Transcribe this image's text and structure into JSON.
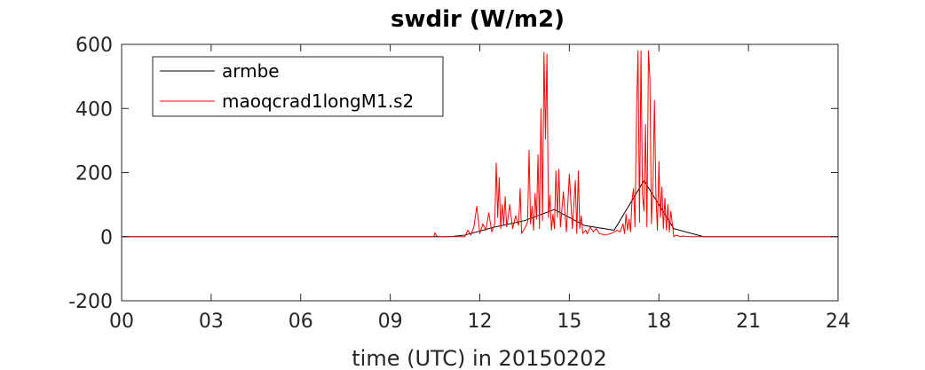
{
  "chart_data": {
    "type": "line",
    "title": "swdir  (W/m2)",
    "xlabel": "time (UTC) in 20150202",
    "ylabel": "",
    "xlim": [
      0,
      24
    ],
    "ylim": [
      -200,
      600
    ],
    "xticks": [
      "00",
      "03",
      "06",
      "09",
      "12",
      "15",
      "18",
      "21",
      "24"
    ],
    "yticks": [
      "-200",
      "0",
      "200",
      "400",
      "600"
    ],
    "grid": false,
    "legend_position": "top-left",
    "series": [
      {
        "name": "armbe",
        "color": "#000000",
        "x": [
          0,
          1,
          2,
          3,
          4,
          5,
          6,
          7,
          8,
          9,
          10,
          11,
          11.5,
          12.5,
          13.5,
          14.5,
          15.5,
          16.5,
          17.5,
          18.5,
          19.5,
          20.5,
          21.5,
          22.5,
          23.5,
          24
        ],
        "y": [
          0,
          0,
          0,
          0,
          0,
          0,
          0,
          0,
          0,
          0,
          0,
          0,
          5,
          30,
          50,
          85,
          35,
          20,
          175,
          25,
          0,
          0,
          0,
          0,
          0,
          0
        ]
      },
      {
        "name": "maoqcrad1longM1.s2",
        "color": "#ff0000",
        "x": [
          0,
          10.45,
          10.5,
          10.55,
          10.6,
          11.5,
          11.6,
          11.7,
          11.8,
          11.9,
          12.0,
          12.1,
          12.2,
          12.3,
          12.4,
          12.5,
          12.55,
          12.6,
          12.65,
          12.7,
          12.75,
          12.8,
          12.85,
          12.9,
          12.95,
          13.0,
          13.1,
          13.2,
          13.3,
          13.35,
          13.4,
          13.5,
          13.6,
          13.65,
          13.7,
          13.75,
          13.8,
          13.85,
          13.9,
          13.95,
          14.0,
          14.05,
          14.1,
          14.15,
          14.2,
          14.25,
          14.3,
          14.35,
          14.4,
          14.45,
          14.5,
          14.55,
          14.6,
          14.65,
          14.7,
          14.8,
          14.9,
          15.0,
          15.1,
          15.2,
          15.25,
          15.3,
          15.35,
          15.4,
          15.45,
          15.5,
          15.55,
          15.6,
          15.7,
          15.8,
          15.9,
          16.0,
          16.2,
          16.4,
          16.6,
          16.7,
          16.8,
          16.85,
          16.9,
          16.95,
          17.0,
          17.05,
          17.1,
          17.15,
          17.2,
          17.25,
          17.3,
          17.35,
          17.4,
          17.45,
          17.5,
          17.55,
          17.6,
          17.65,
          17.7,
          17.75,
          17.8,
          17.85,
          17.9,
          17.95,
          18.0,
          18.05,
          18.1,
          18.15,
          18.2,
          18.25,
          18.3,
          18.35,
          18.4,
          18.5,
          18.6,
          18.7,
          18.8,
          19.0,
          24
        ],
        "y": [
          0,
          0,
          12,
          3,
          0,
          0,
          20,
          5,
          30,
          95,
          10,
          40,
          20,
          75,
          15,
          40,
          230,
          60,
          185,
          25,
          100,
          35,
          125,
          30,
          60,
          100,
          25,
          65,
          35,
          150,
          10,
          25,
          45,
          270,
          40,
          95,
          20,
          135,
          55,
          255,
          25,
          400,
          50,
          575,
          305,
          570,
          60,
          130,
          20,
          70,
          25,
          205,
          60,
          210,
          30,
          140,
          15,
          195,
          25,
          175,
          10,
          205,
          25,
          65,
          10,
          15,
          20,
          8,
          30,
          15,
          25,
          10,
          5,
          10,
          20,
          15,
          40,
          10,
          70,
          20,
          55,
          15,
          115,
          150,
          30,
          385,
          580,
          45,
          580,
          130,
          80,
          350,
          30,
          580,
          490,
          40,
          155,
          425,
          130,
          20,
          235,
          60,
          155,
          25,
          120,
          20,
          100,
          15,
          80,
          0,
          5,
          0,
          2,
          0,
          0
        ]
      }
    ]
  }
}
